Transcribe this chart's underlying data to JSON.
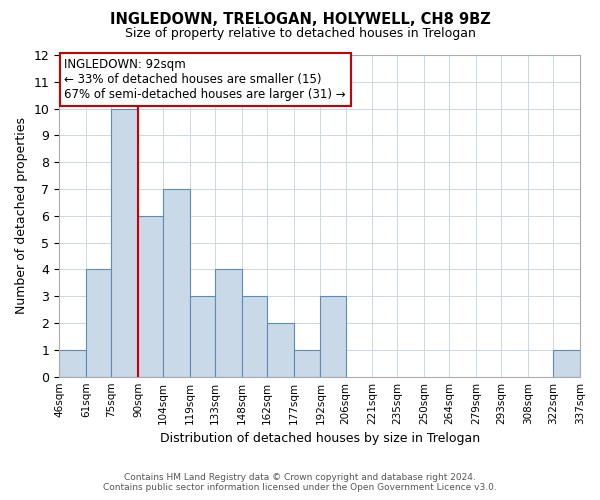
{
  "title": "INGLEDOWN, TRELOGAN, HOLYWELL, CH8 9BZ",
  "subtitle": "Size of property relative to detached houses in Trelogan",
  "xlabel": "Distribution of detached houses by size in Trelogan",
  "ylabel": "Number of detached properties",
  "bin_edges": [
    46,
    61,
    75,
    90,
    104,
    119,
    133,
    148,
    162,
    177,
    192,
    206,
    221,
    235,
    250,
    264,
    279,
    293,
    308,
    322,
    337
  ],
  "bin_labels": [
    "46sqm",
    "61sqm",
    "75sqm",
    "90sqm",
    "104sqm",
    "119sqm",
    "133sqm",
    "148sqm",
    "162sqm",
    "177sqm",
    "192sqm",
    "206sqm",
    "221sqm",
    "235sqm",
    "250sqm",
    "264sqm",
    "279sqm",
    "293sqm",
    "308sqm",
    "322sqm",
    "337sqm"
  ],
  "counts": [
    1,
    4,
    10,
    6,
    7,
    3,
    4,
    3,
    2,
    1,
    3,
    0,
    0,
    0,
    0,
    0,
    0,
    0,
    0,
    1
  ],
  "bar_color": "#c9d9e8",
  "bar_edge_color": "#5b8db8",
  "vline_x": 90,
  "vline_color": "#cc0000",
  "ylim": [
    0,
    12
  ],
  "yticks": [
    0,
    1,
    2,
    3,
    4,
    5,
    6,
    7,
    8,
    9,
    10,
    11,
    12
  ],
  "ann_title": "INGLEDOWN: 92sqm",
  "ann_line2": "← 33% of detached houses are smaller (15)",
  "ann_line3": "67% of semi-detached houses are larger (31) →",
  "ann_edge_color": "#cc0000",
  "footer_line1": "Contains HM Land Registry data © Crown copyright and database right 2024.",
  "footer_line2": "Contains public sector information licensed under the Open Government Licence v3.0.",
  "background_color": "#ffffff",
  "grid_color": "#c8d8e8"
}
